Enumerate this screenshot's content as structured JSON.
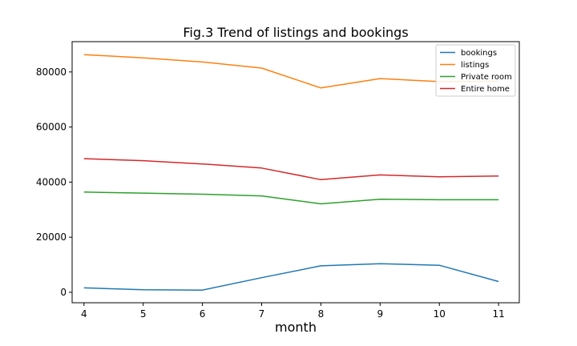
{
  "chart_data": {
    "type": "line",
    "title": "Fig.3 Trend of listings and bookings",
    "xlabel": "month",
    "ylabel": "",
    "x": [
      4,
      5,
      6,
      7,
      8,
      9,
      10,
      11
    ],
    "xlim": [
      3.8,
      11.35
    ],
    "ylim": [
      -3800,
      91000
    ],
    "xticks": [
      4,
      5,
      6,
      7,
      8,
      9,
      10,
      11
    ],
    "yticks": [
      0,
      20000,
      40000,
      60000,
      80000
    ],
    "grid": false,
    "legend_position": "top-right",
    "series": [
      {
        "name": "bookings",
        "color": "#1f77b4",
        "values": [
          1600,
          900,
          800,
          5300,
          9600,
          10400,
          9800,
          3900
        ]
      },
      {
        "name": "listings",
        "color": "#ff7f0e",
        "values": [
          86300,
          85100,
          83600,
          81400,
          74200,
          77600,
          76500,
          76600
        ]
      },
      {
        "name": "Private room",
        "color": "#2ca02c",
        "values": [
          36400,
          36000,
          35600,
          35000,
          32100,
          33800,
          33600,
          33600
        ]
      },
      {
        "name": "Entire home",
        "color": "#d62728",
        "values": [
          48500,
          47800,
          46600,
          45100,
          40900,
          42600,
          41900,
          42200
        ]
      }
    ]
  }
}
